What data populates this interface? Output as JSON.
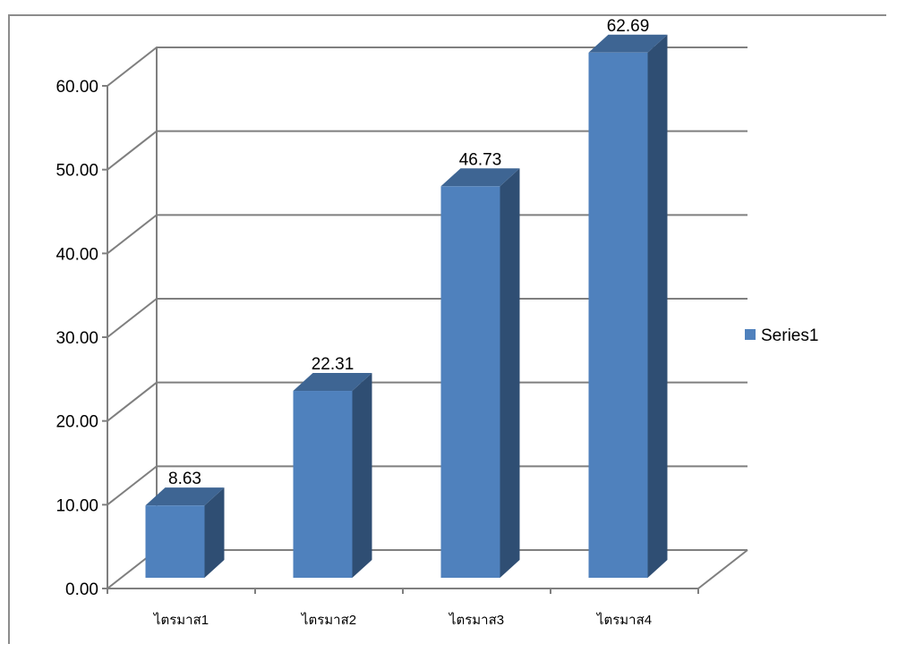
{
  "chart_data": {
    "type": "bar",
    "style": "3d-column",
    "categories": [
      "ไตรมาส1",
      "ไตรมาส2",
      "ไตรมาส3",
      "ไตรมาส4"
    ],
    "series": [
      {
        "name": "Series1",
        "values": [
          8.63,
          22.31,
          46.73,
          62.69
        ]
      }
    ],
    "data_labels": [
      "8.63",
      "22.31",
      "46.73",
      "62.69"
    ],
    "y_ticks": [
      "0.00",
      "10.00",
      "20.00",
      "30.00",
      "40.00",
      "50.00",
      "60.00"
    ],
    "ylim": [
      0,
      60
    ],
    "grid": true,
    "legend_position": "right",
    "colors": {
      "bar_front": "#4f81bd",
      "bar_top": "#3e6593",
      "bar_side": "#2f4e73",
      "grid": "#7f7f7f"
    }
  }
}
